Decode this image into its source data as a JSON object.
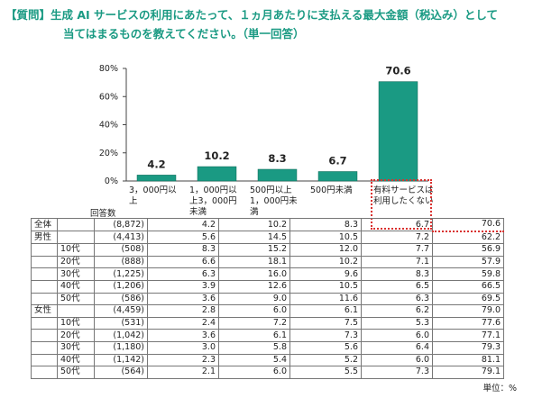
{
  "question": {
    "tag": "【質問】",
    "line1": "生成 AI サービスの利用にあたって、１ヵ月あたりに支払える最大金額（税込み）として",
    "line2": "当てはまるものを教えてください。（単一回答）"
  },
  "chart_data": {
    "type": "bar",
    "categories": [
      "3，000円以上",
      "1，000円以上3，000円未満",
      "500円以上1，000円未満",
      "500円未満",
      "有料サービスは利用したくない"
    ],
    "values": [
      4.2,
      10.2,
      8.3,
      6.7,
      70.6
    ],
    "y_ticks": [
      "0%",
      "20%",
      "40%",
      "60%",
      "80%"
    ],
    "ylim": [
      0,
      80
    ],
    "bar_color": "#1a9a83",
    "highlight_color": "#d9312f",
    "data_labels": [
      "4.2",
      "10.2",
      "8.3",
      "6.7",
      "70.6"
    ]
  },
  "category_labels": {
    "c1": [
      "3，000円以",
      "上"
    ],
    "c2": [
      "1，000円以",
      "上3，000円",
      "未満"
    ],
    "c3": [
      "500円以上",
      "1，000円未",
      "満"
    ],
    "c4": [
      "500円未満"
    ],
    "c5": [
      "有料サービスは",
      "利用したくない"
    ]
  },
  "table": {
    "n_header": "回答数",
    "rows": [
      {
        "g": "全体",
        "s": "",
        "n": "(8,872)",
        "v": [
          "4.2",
          "10.2",
          "8.3",
          "6.7",
          "70.6"
        ]
      },
      {
        "g": "男性",
        "s": "",
        "n": "(4,413)",
        "v": [
          "5.6",
          "14.5",
          "10.5",
          "7.2",
          "62.2"
        ]
      },
      {
        "g": "",
        "s": "10代",
        "n": "(508)",
        "v": [
          "8.3",
          "15.2",
          "12.0",
          "7.7",
          "56.9"
        ]
      },
      {
        "g": "",
        "s": "20代",
        "n": "(888)",
        "v": [
          "6.6",
          "18.1",
          "10.2",
          "7.1",
          "57.9"
        ]
      },
      {
        "g": "",
        "s": "30代",
        "n": "(1,225)",
        "v": [
          "6.3",
          "16.0",
          "9.6",
          "8.3",
          "59.8"
        ]
      },
      {
        "g": "",
        "s": "40代",
        "n": "(1,206)",
        "v": [
          "3.9",
          "12.6",
          "10.5",
          "6.5",
          "66.5"
        ]
      },
      {
        "g": "",
        "s": "50代",
        "n": "(586)",
        "v": [
          "3.6",
          "9.0",
          "11.6",
          "6.3",
          "69.5"
        ]
      },
      {
        "g": "女性",
        "s": "",
        "n": "(4,459)",
        "v": [
          "2.8",
          "6.0",
          "6.1",
          "6.2",
          "79.0"
        ]
      },
      {
        "g": "",
        "s": "10代",
        "n": "(531)",
        "v": [
          "2.4",
          "7.2",
          "7.5",
          "5.3",
          "77.6"
        ]
      },
      {
        "g": "",
        "s": "20代",
        "n": "(1,042)",
        "v": [
          "3.6",
          "6.1",
          "7.3",
          "6.0",
          "77.1"
        ]
      },
      {
        "g": "",
        "s": "30代",
        "n": "(1,180)",
        "v": [
          "3.0",
          "5.8",
          "5.6",
          "6.4",
          "79.3"
        ]
      },
      {
        "g": "",
        "s": "40代",
        "n": "(1,142)",
        "v": [
          "2.3",
          "5.4",
          "5.2",
          "6.0",
          "81.1"
        ]
      },
      {
        "g": "",
        "s": "50代",
        "n": "(564)",
        "v": [
          "2.1",
          "6.0",
          "5.5",
          "7.3",
          "79.1"
        ]
      }
    ],
    "unit": "単位：%"
  }
}
